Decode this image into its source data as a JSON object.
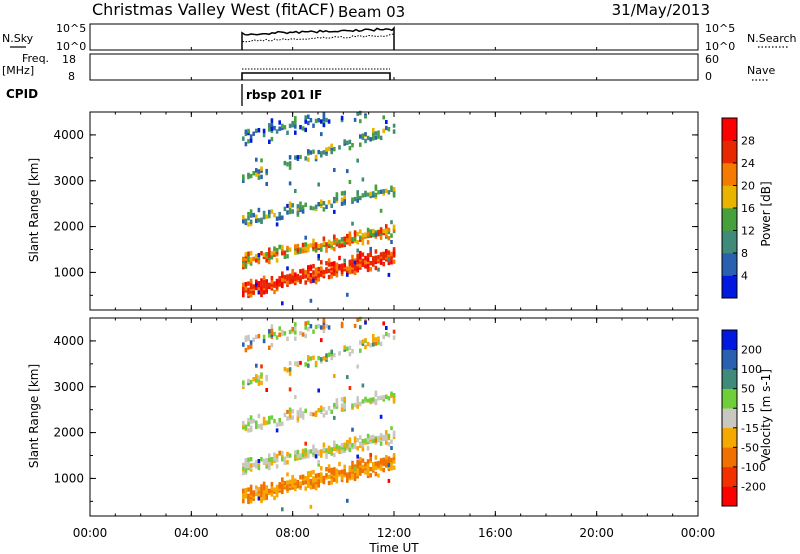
{
  "header": {
    "title": "Christmas Valley West (fitACF)",
    "beam": "Beam 03",
    "date": "31/May/2013"
  },
  "panels": {
    "nsky": {
      "left_label": "N.Sky",
      "right_label": "N.Search",
      "tick_top": "10^5",
      "tick_bottom": "10^0"
    },
    "freq": {
      "left_label_line1": "Freq.",
      "left_label_line2": "[MHz]",
      "left_tick_top": "18",
      "left_tick_bottom": "8",
      "right_label": "Nave",
      "right_tick_top": "60",
      "right_tick_bottom": "0"
    },
    "cpid": {
      "label": "CPID",
      "value": "rbsp 201 IF"
    }
  },
  "chart_data": [
    {
      "type": "heatmap",
      "name": "power",
      "ylabel": "Slant Range [km]",
      "ylim": [
        180,
        4500
      ],
      "yticks": [
        "1000",
        "2000",
        "3000",
        "4000"
      ],
      "ytick_values": [
        1000,
        2000,
        3000,
        4000
      ],
      "colorbar_label": "Power [dB]",
      "colorbar_ticks": [
        "4",
        "8",
        "12",
        "16",
        "20",
        "24",
        "28"
      ],
      "colorbar_colors": [
        "#0018e0",
        "#2a60b0",
        "#3f8a78",
        "#46a03c",
        "#e8b400",
        "#f57b00",
        "#e82800",
        "#ff0000"
      ]
    },
    {
      "type": "heatmap",
      "name": "velocity",
      "ylabel": "Slant Range [km]",
      "ylim": [
        180,
        4500
      ],
      "yticks": [
        "1000",
        "2000",
        "3000",
        "4000"
      ],
      "ytick_values": [
        1000,
        2000,
        3000,
        4000
      ],
      "colorbar_label": "Velocity [m s-1]",
      "colorbar_ticks": [
        "-200",
        "-100",
        "-50",
        "-15",
        "15",
        "50",
        "100",
        "200"
      ],
      "colorbar_colors": [
        "#ff0000",
        "#f23000",
        "#f07000",
        "#f5a800",
        "#c8c8c0",
        "#6fcf3a",
        "#3f8a78",
        "#2a60b0",
        "#0018e0"
      ]
    }
  ],
  "xaxis": {
    "label": "Time UT",
    "ticks": [
      "00:00",
      "04:00",
      "08:00",
      "12:00",
      "16:00",
      "20:00",
      "00:00"
    ],
    "tick_hours": [
      0,
      4,
      8,
      12,
      16,
      20,
      24
    ],
    "data_start_hour": 6,
    "data_end_hour": 12
  }
}
